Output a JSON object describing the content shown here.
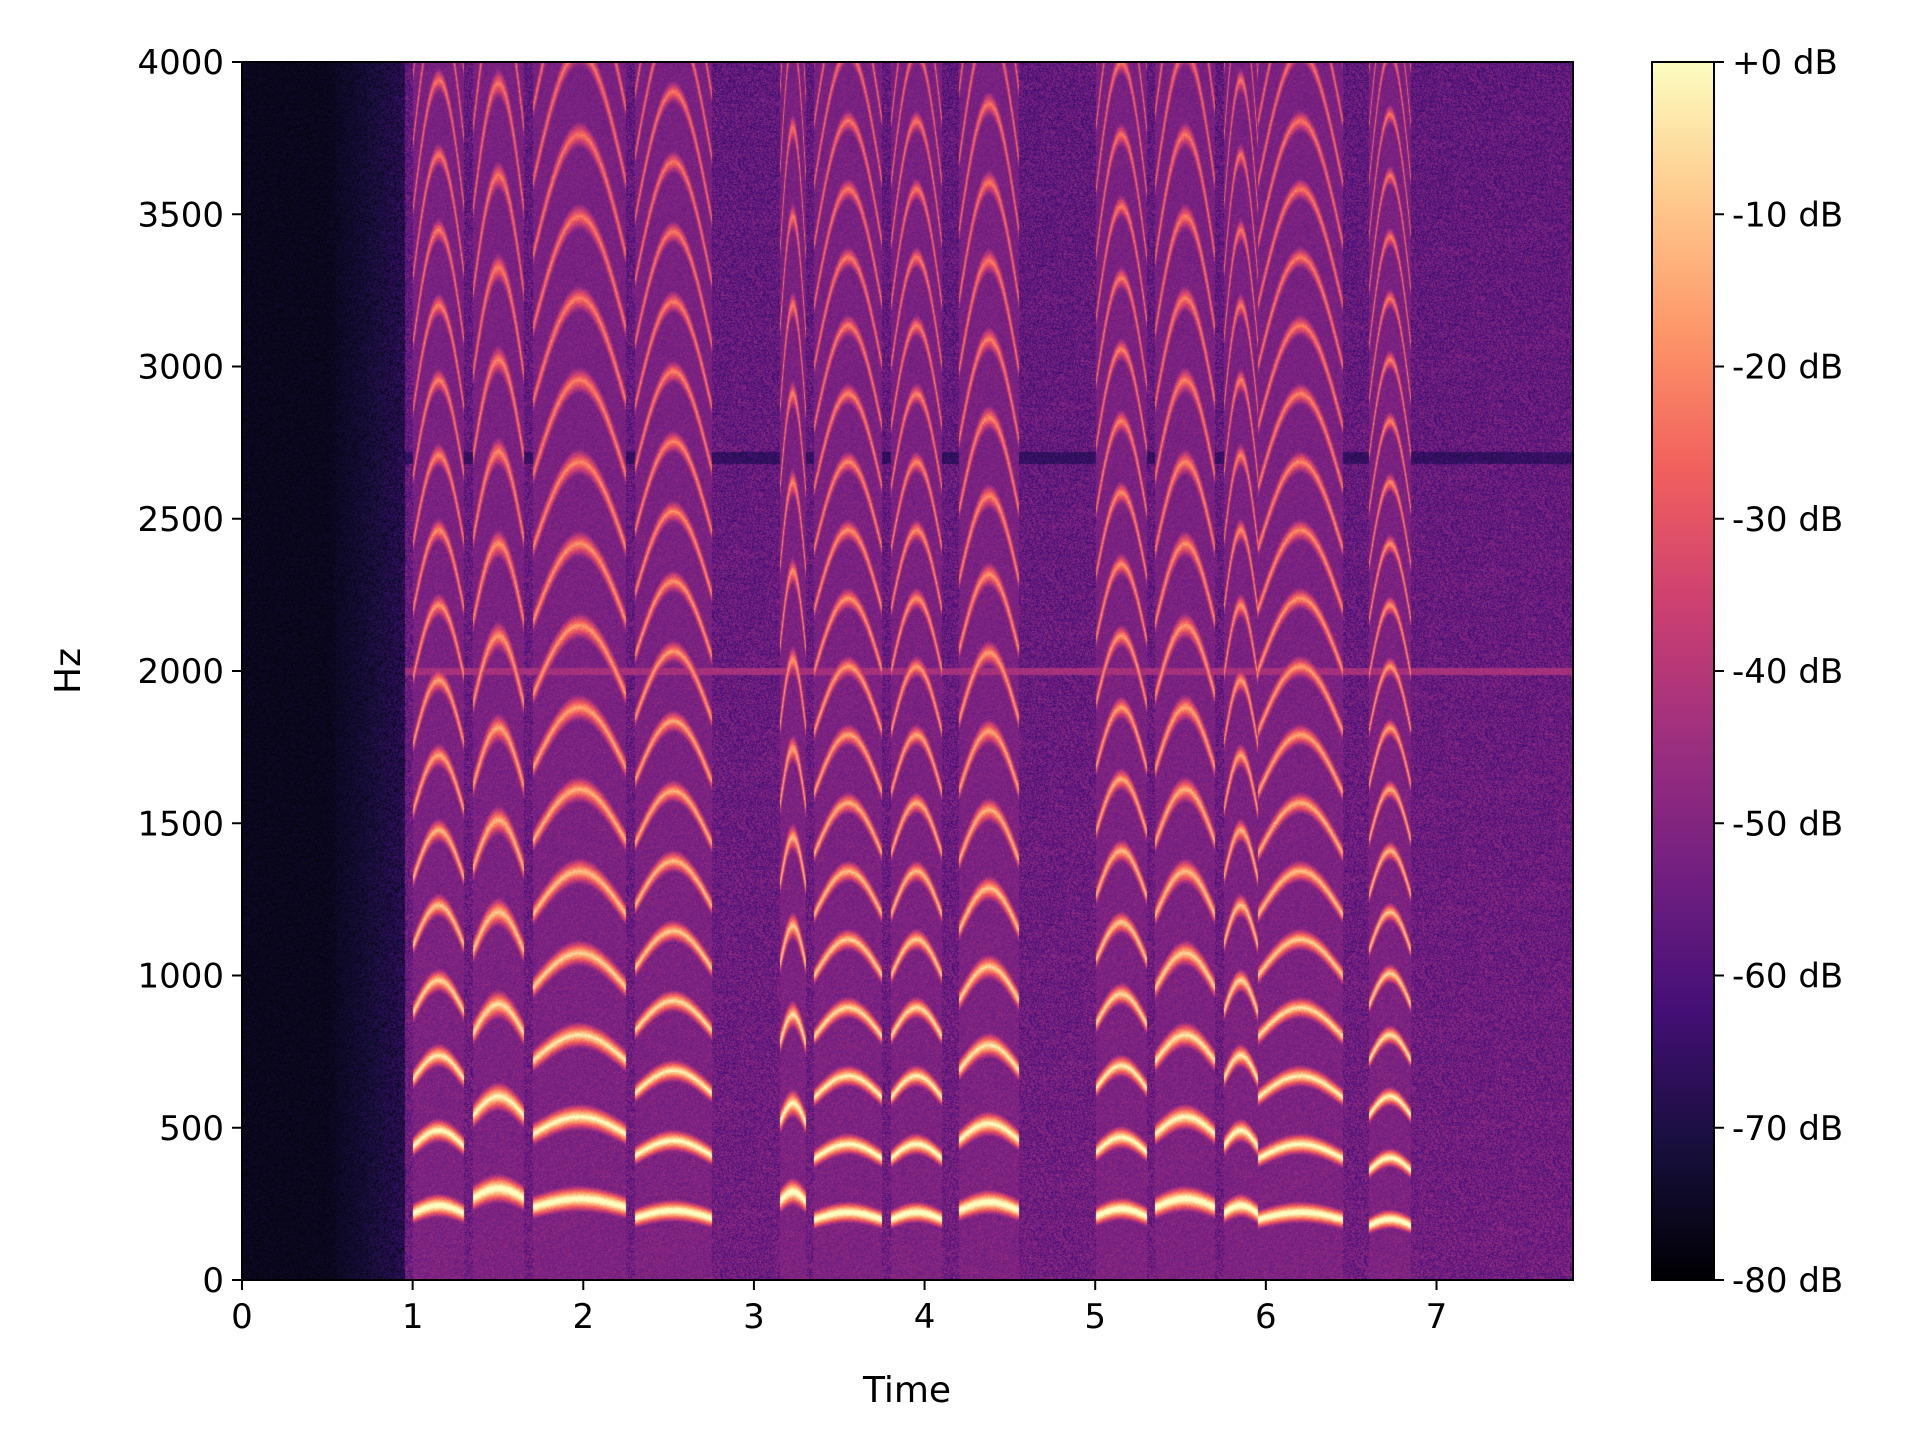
{
  "chart_data": {
    "type": "heatmap",
    "title": "",
    "xlabel": "Time",
    "ylabel": "Hz",
    "xlim": [
      0,
      7.8
    ],
    "ylim": [
      0,
      4000
    ],
    "x_ticks": [
      0,
      1,
      2,
      3,
      4,
      5,
      6,
      7
    ],
    "x_tick_labels": [
      "0",
      "1",
      "2",
      "3",
      "4",
      "5",
      "6",
      "7"
    ],
    "y_ticks": [
      0,
      500,
      1000,
      1500,
      2000,
      2500,
      3000,
      3500,
      4000
    ],
    "y_tick_labels": [
      "0",
      "500",
      "1000",
      "1500",
      "2000",
      "2500",
      "3000",
      "3500",
      "4000"
    ],
    "colorbar": {
      "colormap": "magma",
      "range_db": [
        -80,
        0
      ],
      "ticks": [
        0,
        -10,
        -20,
        -30,
        -40,
        -50,
        -60,
        -70,
        -80
      ],
      "tick_labels": [
        "+0 dB",
        "-10 dB",
        "-20 dB",
        "-30 dB",
        "-40 dB",
        "-50 dB",
        "-60 dB",
        "-70 dB",
        "-80 dB"
      ],
      "stops": [
        "#000004",
        "#180f3d",
        "#440f76",
        "#721f81",
        "#9e2f7f",
        "#cd4071",
        "#f1605d",
        "#fd9668",
        "#feca8d",
        "#fcfdbf"
      ]
    },
    "grid": false,
    "features": {
      "silence_until_s": 0.95,
      "tone_hz": 2000,
      "voiced_segments": [
        {
          "t_start": 1.0,
          "t_end": 1.3,
          "f0": 220
        },
        {
          "t_start": 1.35,
          "t_end": 1.65,
          "f0": 270
        },
        {
          "t_start": 1.7,
          "t_end": 2.25,
          "f0": 240
        },
        {
          "t_start": 2.3,
          "t_end": 2.75,
          "f0": 205
        },
        {
          "t_start": 3.15,
          "t_end": 3.3,
          "f0": 260
        },
        {
          "t_start": 3.35,
          "t_end": 3.75,
          "f0": 200
        },
        {
          "t_start": 3.8,
          "t_end": 4.1,
          "f0": 200
        },
        {
          "t_start": 4.2,
          "t_end": 4.55,
          "f0": 230
        },
        {
          "t_start": 5.0,
          "t_end": 5.3,
          "f0": 210
        },
        {
          "t_start": 5.35,
          "t_end": 5.7,
          "f0": 240
        },
        {
          "t_start": 5.75,
          "t_end": 5.95,
          "f0": 220
        },
        {
          "t_start": 5.95,
          "t_end": 6.45,
          "f0": 200
        },
        {
          "t_start": 6.6,
          "t_end": 6.85,
          "f0": 180
        }
      ]
    }
  }
}
